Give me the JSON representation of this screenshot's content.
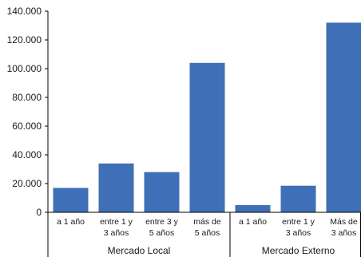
{
  "chart_data": {
    "type": "bar",
    "title": "",
    "xlabel": "",
    "ylabel": "",
    "ylim": [
      0,
      140000
    ],
    "yticks": [
      0,
      20000,
      40000,
      60000,
      80000,
      100000,
      120000,
      140000
    ],
    "ytick_labels": [
      "0",
      "20.000",
      "40.000",
      "60.000",
      "80.000",
      "100.000",
      "120.000",
      "140.000"
    ],
    "grid": false,
    "legend": "none",
    "bar_color": "#3f6fb6",
    "groups": [
      {
        "label": "Mercado Local",
        "categories": [
          [
            "a 1 año"
          ],
          [
            "entre 1 y",
            "3 años"
          ],
          [
            "entre 3 y",
            "5 años"
          ],
          [
            "más de",
            "5 años"
          ]
        ],
        "values": [
          17000,
          34000,
          28000,
          104000
        ]
      },
      {
        "label": "Mercado Externo",
        "categories": [
          [
            "a 1 año"
          ],
          [
            "entre 1 y",
            "3 años"
          ],
          [
            "Más de",
            "3 años"
          ]
        ],
        "values": [
          5000,
          18500,
          132000
        ]
      }
    ]
  }
}
